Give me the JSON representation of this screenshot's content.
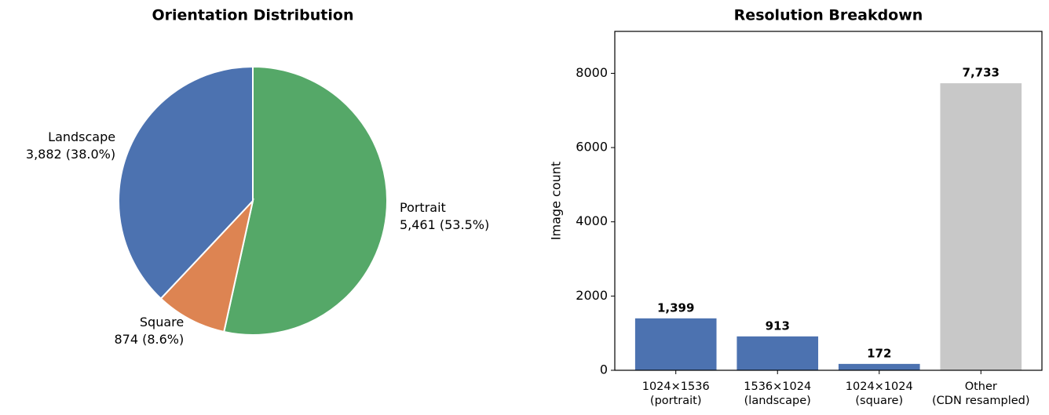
{
  "chart_data": [
    {
      "type": "pie",
      "title": "Orientation Distribution",
      "categories": [
        "Portrait",
        "Square",
        "Landscape"
      ],
      "values": [
        5461,
        874,
        3882
      ],
      "value_labels": [
        "5,461 (53.5%)",
        "874 (8.6%)",
        "3,882 (38.0%)"
      ],
      "colors": [
        "#55a868",
        "#dd8452",
        "#4c72b0"
      ]
    },
    {
      "type": "bar",
      "title": "Resolution Breakdown",
      "ylabel": "Image count",
      "categories": [
        [
          "1024×1536",
          "(portrait)"
        ],
        [
          "1536×1024",
          "(landscape)"
        ],
        [
          "1024×1024",
          "(square)"
        ],
        [
          "Other",
          "(CDN resampled)"
        ]
      ],
      "values": [
        1399,
        913,
        172,
        7733
      ],
      "value_labels": [
        "1,399",
        "913",
        "172",
        "7,733"
      ],
      "colors": [
        "#4c72b0",
        "#4c72b0",
        "#4c72b0",
        "#c8c8c8"
      ],
      "ylim": [
        0,
        9130
      ],
      "yticks": [
        0,
        2000,
        4000,
        6000,
        8000
      ]
    }
  ]
}
